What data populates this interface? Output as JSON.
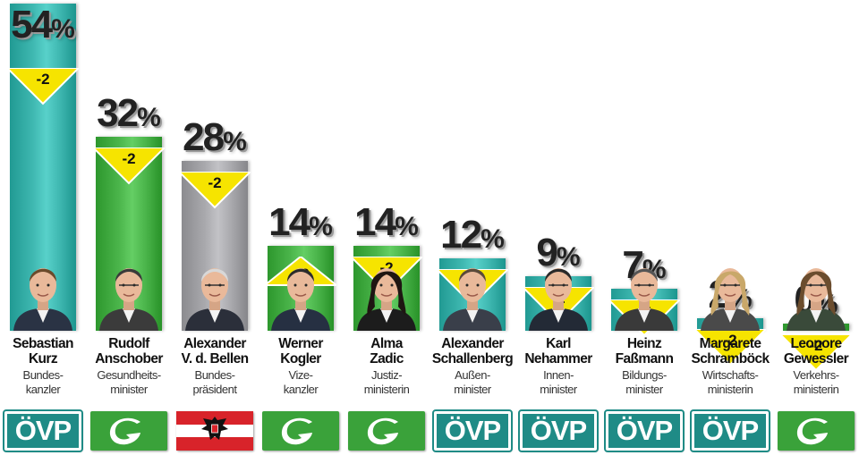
{
  "chart_data": {
    "type": "bar",
    "ylim": [
      0,
      54
    ],
    "categories": [
      "Sebastian Kurz",
      "Rudolf Anschober",
      "Alexander V. d. Bellen",
      "Werner Kogler",
      "Alma Zadic",
      "Alexander Schallenberg",
      "Karl Nehammer",
      "Heinz Faßmann",
      "Margarete Schramböck",
      "Leonore Gewessler"
    ],
    "values": [
      54,
      32,
      28,
      14,
      14,
      12,
      9,
      7,
      2,
      0
    ],
    "changes": [
      "-2",
      "-2",
      "-2",
      "+2",
      "-2",
      "-2",
      "-2",
      "-2",
      "-2",
      "-2"
    ],
    "unit": "%"
  },
  "people": [
    {
      "first": "Sebastian",
      "last": "Kurz",
      "role1": "Bundes-",
      "role2": "kanzler",
      "party": "ÖVP",
      "badge": "ovp",
      "color": "#3fb8b1",
      "value_label": "54",
      "change": "-2"
    },
    {
      "first": "Rudolf",
      "last": "Anschober",
      "role1": "Gesundheits-",
      "role2": "minister",
      "party": "G",
      "badge": "green",
      "color": "#4bb54b",
      "value_label": "32",
      "change": "-2"
    },
    {
      "first": "Alexander",
      "last": "V. d. Bellen",
      "role1": "Bundes-",
      "role2": "präsident",
      "party": "AT",
      "badge": "at",
      "color": "#a9a9ad",
      "value_label": "28",
      "change": "-2"
    },
    {
      "first": "Werner",
      "last": "Kogler",
      "role1": "Vize-",
      "role2": "kanzler",
      "party": "G",
      "badge": "green",
      "color": "#4bb54b",
      "value_label": "14",
      "change": "+2"
    },
    {
      "first": "Alma",
      "last": "Zadic",
      "role1": "Justiz-",
      "role2": "ministerin",
      "party": "G",
      "badge": "green",
      "color": "#4bb54b",
      "value_label": "14",
      "change": "-2"
    },
    {
      "first": "Alexander",
      "last": "Schallenberg",
      "role1": "Außen-",
      "role2": "minister",
      "party": "ÖVP",
      "badge": "ovp",
      "color": "#3fb8b1",
      "value_label": "12",
      "change": "-2"
    },
    {
      "first": "Karl",
      "last": "Nehammer",
      "role1": "Innen-",
      "role2": "minister",
      "party": "ÖVP",
      "badge": "ovp",
      "color": "#3fb8b1",
      "value_label": "9",
      "change": "-2"
    },
    {
      "first": "Heinz",
      "last": "Faßmann",
      "role1": "Bildungs-",
      "role2": "minister",
      "party": "ÖVP",
      "badge": "ovp",
      "color": "#3fb8b1",
      "value_label": "7",
      "change": "-2"
    },
    {
      "first": "Margarete",
      "last": "Schramböck",
      "role1": "Wirtschafts-",
      "role2": "ministerin",
      "party": "ÖVP",
      "badge": "ovp",
      "color": "#3fb8b1",
      "value_label": "2",
      "change": "-2"
    },
    {
      "first": "Leonore",
      "last": "Gewessler",
      "role1": "Verkehrs-",
      "role2": "ministerin",
      "party": "G",
      "badge": "green",
      "color": "#4bb54b",
      "value_label": "0",
      "change": "-2"
    }
  ],
  "percent_sign": "%"
}
